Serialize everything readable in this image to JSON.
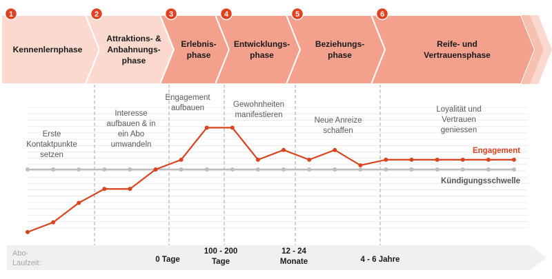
{
  "phases": [
    {
      "number": "1",
      "label": [
        "Kennenlernphase"
      ],
      "fill": "#fbd9cf"
    },
    {
      "number": "2",
      "label": [
        "Attraktions- &",
        "Anbahnungs-",
        "phase"
      ],
      "fill": "#fbd9cf"
    },
    {
      "number": "3",
      "label": [
        "Erlebnis-",
        "phase"
      ],
      "fill": "#f3a08d"
    },
    {
      "number": "4",
      "label": [
        "Entwicklungs-",
        "phase"
      ],
      "fill": "#f3a08d"
    },
    {
      "number": "5",
      "label": [
        "Beziehungs-",
        "phase"
      ],
      "fill": "#f3a08d"
    },
    {
      "number": "6",
      "label": [
        "Reife- und",
        "Vertrauensphase"
      ],
      "fill": "#f3a08d"
    }
  ],
  "descriptions": [
    [
      "Erste",
      "Kontaktpunkte",
      "setzen"
    ],
    [
      "Interesse",
      "aufbauen & in",
      "ein Abo",
      "umwandeln"
    ],
    [
      "Engagement",
      "aufbauen"
    ],
    [
      "Gewohnheiten",
      "manifestieren"
    ],
    [
      "Neue Anreize",
      "schaffen"
    ],
    [
      "Loyalität und",
      "Vertrauen",
      "geniessen"
    ]
  ],
  "timeline": {
    "label": [
      "Abo-",
      "Laufzeit:"
    ],
    "ticks": [
      [
        "0 Tage"
      ],
      [
        "100 - 200",
        "Tage"
      ],
      [
        "12 - 24",
        "Monate"
      ],
      [
        "4 - 6 Jahre"
      ]
    ]
  },
  "colors": {
    "badge": "#e0411f",
    "engagement": "#d9441f",
    "threshold": "#bdbdbd",
    "light_phase": "#fbd9cf",
    "dark_phase": "#f3a08d"
  },
  "chart_data": {
    "type": "line",
    "series": [
      {
        "name": "Engagement",
        "values": [
          -4.5,
          -3.8,
          -2.4,
          -1.4,
          -1.4,
          0,
          0.7,
          3.0,
          3.0,
          0.7,
          1.4,
          0.7,
          1.4,
          0.3,
          0.7,
          0.7,
          0.7,
          0.7,
          0.7,
          0.7
        ]
      },
      {
        "name": "Kündigungsschwelle",
        "values": [
          0,
          0,
          0,
          0,
          0,
          0,
          0,
          0,
          0,
          0,
          0,
          0,
          0,
          0,
          0,
          0,
          0,
          0,
          0,
          0
        ]
      }
    ],
    "series_labels": [
      "Engagement",
      "Kündigungsschwelle"
    ],
    "ylim": [
      -5,
      4.5
    ]
  }
}
